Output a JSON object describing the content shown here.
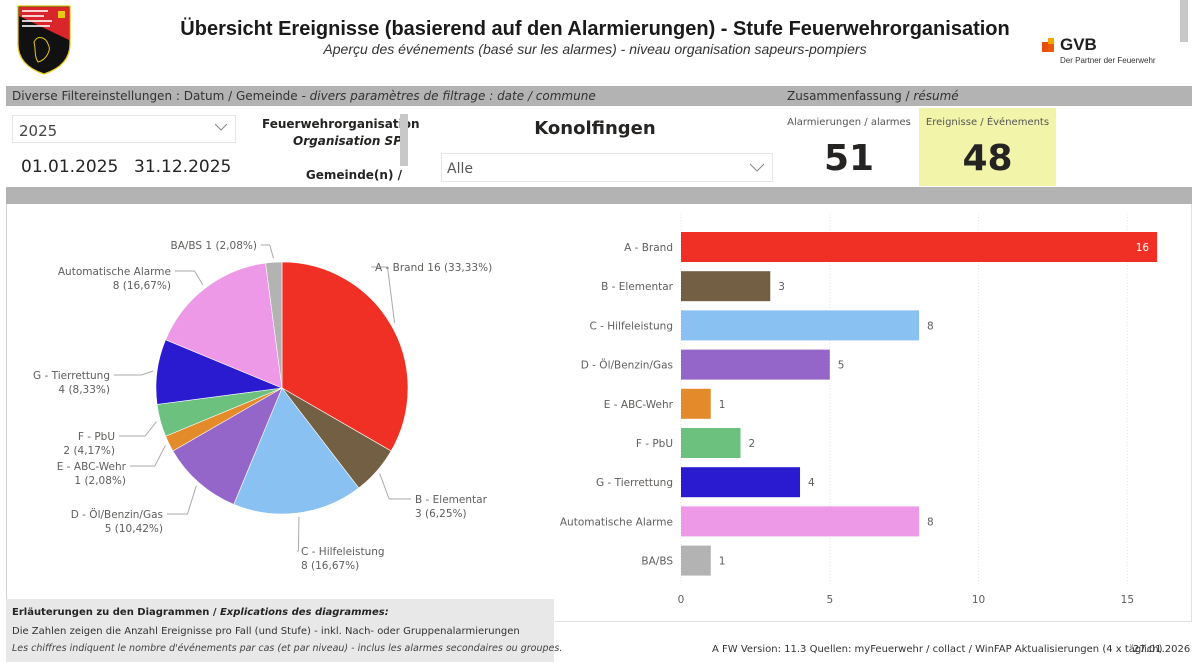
{
  "header": {
    "title": "Übersicht Ereignisse (basierend auf den Alarmierungen) - Stufe Feuerwehrorganisation",
    "subtitle": "Aperçu des événements (basé sur les alarmes) - niveau organisation sapeurs-pompiers",
    "logo_left_icon": "fire-inspectorate-shield-icon",
    "logo_right": {
      "name": "GVB",
      "tagline": "Der Partner der Feuerwehr"
    }
  },
  "filters": {
    "bar_label_de": "Diverse Filtereinstellungen : Datum / Gemeinde",
    "bar_label_fr": " - divers paramètres de filtrage : date / commune",
    "year_selected": "2025",
    "date_from": "01.01.2025",
    "date_to": "31.12.2025",
    "org_label_de": "Feuerwehrorganisation",
    "org_label_fr": "Organisation SP",
    "gemeinde_label": "Gemeinde(n) /",
    "org_name": "Konolfingen",
    "gemeinde_selected": "Alle"
  },
  "summary": {
    "label_de": "Zusammenfassung / ",
    "label_fr": "résumé",
    "alarms_label": "Alarmierungen / alarmes",
    "alarms_value": "51",
    "events_label": "Ereignisse / Événements",
    "events_value": "48",
    "events_highlight": "#f2f5a9"
  },
  "chart_data": [
    {
      "type": "pie",
      "title": "",
      "categories": [
        "A - Brand",
        "B - Elementar",
        "C - Hilfeleistung",
        "D - Öl/Benzin/Gas",
        "E - ABC-Wehr",
        "F - PbU",
        "G - Tierrettung",
        "Automatische Alarme",
        "BA/BS"
      ],
      "values": [
        16,
        3,
        8,
        5,
        1,
        2,
        4,
        8,
        1
      ],
      "percent_labels": [
        "33,33%",
        "6,25%",
        "16,67%",
        "10,42%",
        "2,08%",
        "4,17%",
        "8,33%",
        "16,67%",
        "2,08%"
      ],
      "colors": [
        "#f03024",
        "#735f43",
        "#89c2f2",
        "#9466c9",
        "#e38b2a",
        "#6cc17f",
        "#2a1bd0",
        "#ee99e8",
        "#b3b3b3"
      ]
    },
    {
      "type": "bar",
      "orientation": "horizontal",
      "categories": [
        "A - Brand",
        "B - Elementar",
        "C - Hilfeleistung",
        "D - Öl/Benzin/Gas",
        "E - ABC-Wehr",
        "F - PbU",
        "G - Tierrettung",
        "Automatische Alarme",
        "BA/BS"
      ],
      "values": [
        16,
        3,
        8,
        5,
        1,
        2,
        4,
        8,
        1
      ],
      "colors": [
        "#f03024",
        "#735f43",
        "#89c2f2",
        "#9466c9",
        "#e38b2a",
        "#6cc17f",
        "#2a1bd0",
        "#ee99e8",
        "#b3b3b3"
      ],
      "xlim": [
        0,
        16.5
      ],
      "xticks": [
        0,
        5,
        10,
        15
      ],
      "grid": true,
      "xlabel": "",
      "ylabel": ""
    }
  ],
  "notes": {
    "title_de": "Erläuterungen zu den Diagrammen / ",
    "title_fr": "Explications des diagrammes:",
    "line1": "Die Zahlen zeigen die Anzahl Ereignisse pro Fall (und Stufe) - inkl. Nach- oder Gruppenalarmierungen",
    "line2": "Les chiffres indiquent le nombre d'événements par cas (et par niveau) -   inclus les alarmes secondaires ou groupes."
  },
  "footer": {
    "info": "A FW  Version: 11.3  Quellen: myFeuerwehr / collact / WinFAP   Aktualisierungen (4 x täglich)",
    "date": "27.01.2026"
  }
}
